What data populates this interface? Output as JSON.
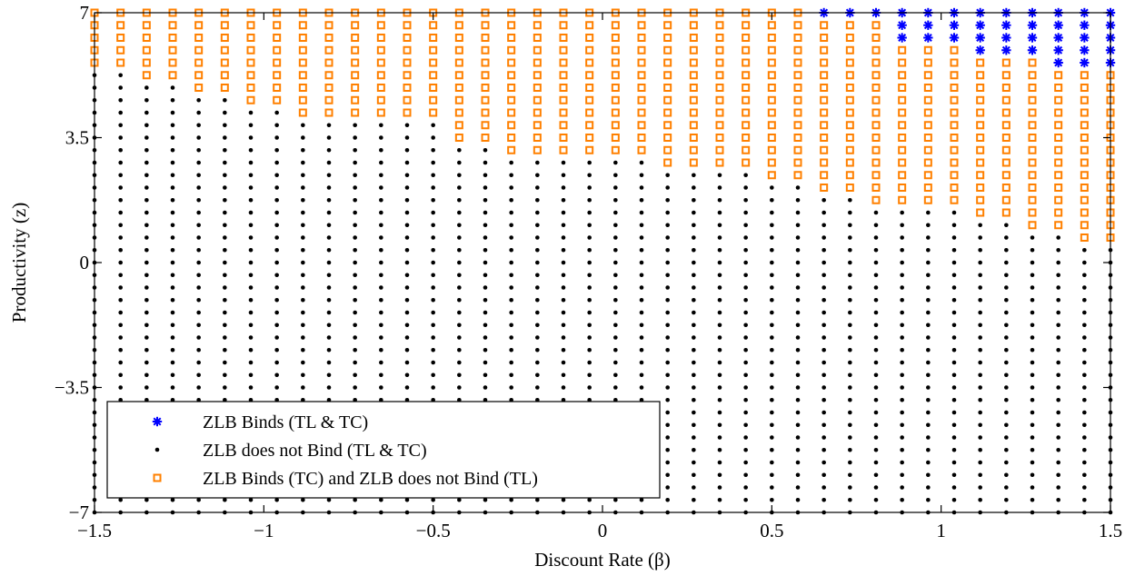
{
  "chart_data": {
    "type": "scatter",
    "xlabel": "Discount Rate (β)",
    "ylabel": "Productivity (z)",
    "xlim": [
      -1.5,
      1.5
    ],
    "ylim": [
      -7,
      7
    ],
    "xticks": [
      "−1.5",
      "−1",
      "−0.5",
      "0",
      "0.5",
      "1",
      "1.5"
    ],
    "xtick_values": [
      -1.5,
      -1,
      -0.5,
      0,
      0.5,
      1,
      1.5
    ],
    "yticks": [
      "−7",
      "−3.5",
      "0",
      "3.5",
      "7"
    ],
    "ytick_values": [
      -7,
      -3.5,
      0,
      3.5,
      7
    ],
    "grid": false,
    "legend_position": "bottom-left",
    "grid_points": {
      "x_start": -1.5,
      "x_step": 0.0769,
      "x_count": 40,
      "y_start": -7,
      "y_step": 0.35,
      "y_count": 41
    },
    "series": [
      {
        "name": "ZLB Binds (TL & TC)",
        "marker": "asterisk",
        "color": "#0000ff",
        "region": "above the upper threshold",
        "upper_threshold_by_x": [
          {
            "x": 0.6,
            "z": 7.0
          },
          {
            "x": 0.83,
            "z": 6.3
          },
          {
            "x": 1.05,
            "z": 5.95
          },
          {
            "x": 1.28,
            "z": 5.6
          },
          {
            "x": 1.5,
            "z": 5.25
          }
        ]
      },
      {
        "name": "ZLB does not Bind (TL & TC)",
        "marker": "dot",
        "color": "#000000",
        "region": "below the lower threshold"
      },
      {
        "name": "ZLB Binds (TC) and ZLB does not Bind (TL)",
        "marker": "square",
        "color": "#ff8000",
        "region": "between the thresholds",
        "lower_threshold_by_x": [
          {
            "x": -1.5,
            "z": 5.6
          },
          {
            "x": -1.42,
            "z": 5.25
          },
          {
            "x": -1.2,
            "z": 4.9
          },
          {
            "x": -1.05,
            "z": 4.55
          },
          {
            "x": -0.9,
            "z": 4.2
          },
          {
            "x": -0.45,
            "z": 3.5
          },
          {
            "x": -0.3,
            "z": 3.15
          },
          {
            "x": 0.15,
            "z": 2.8
          },
          {
            "x": 0.45,
            "z": 2.45
          },
          {
            "x": 0.6,
            "z": 2.1
          },
          {
            "x": 0.75,
            "z": 1.75
          },
          {
            "x": 1.05,
            "z": 1.4
          },
          {
            "x": 1.2,
            "z": 1.05
          },
          {
            "x": 1.35,
            "z": 0.7
          },
          {
            "x": 1.5,
            "z": 0.35
          }
        ]
      }
    ]
  }
}
